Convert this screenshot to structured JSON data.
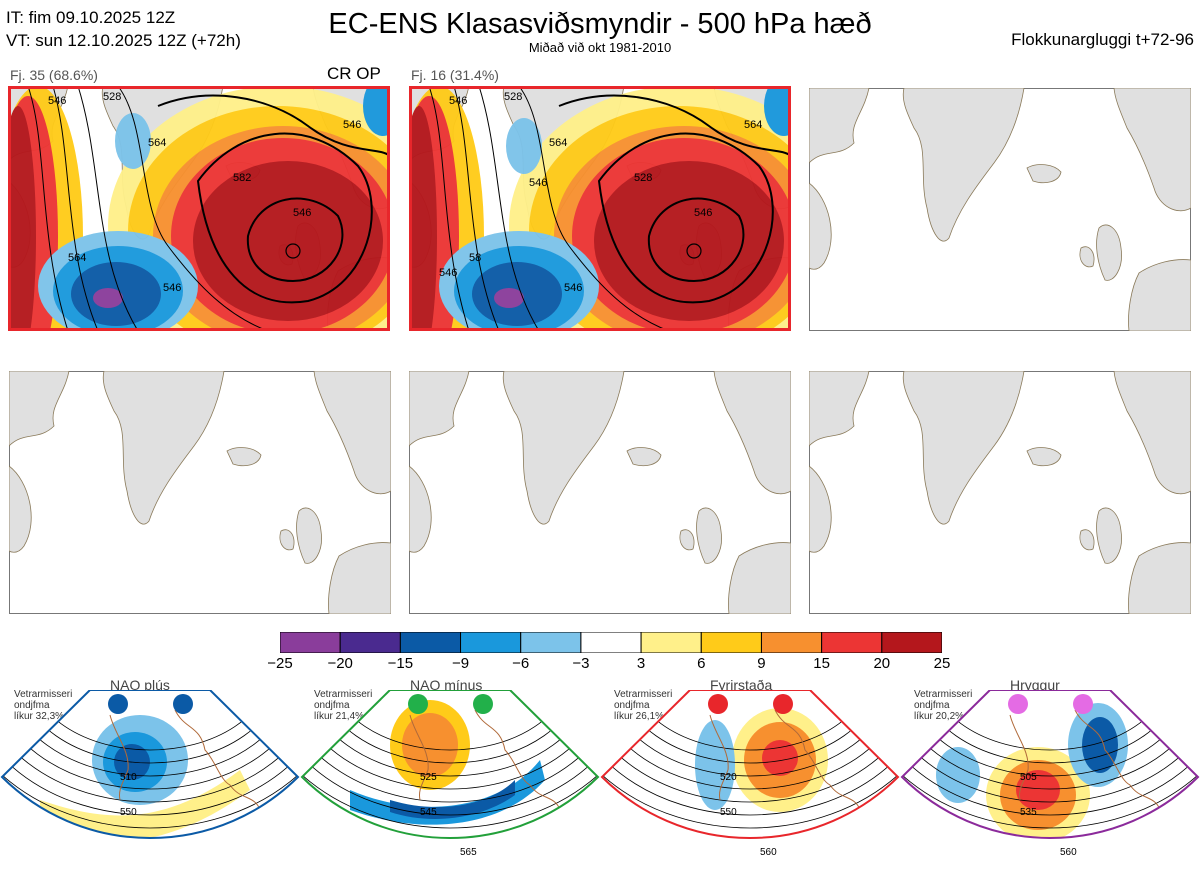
{
  "header": {
    "it_line": "IT: fim 09.10.2025 12Z",
    "vt_line": "VT: sun 12.10.2025 12Z  (+72h)",
    "title": "EC-ENS Klasasviðsmyndir - 500 hPa hæð",
    "subtitle": "Miðað við okt 1981-2010",
    "window": "Flokkunargluggi t+72-96"
  },
  "clusters": [
    {
      "label": "Fj. 35 (68.6%)",
      "tag": "CR OP",
      "contour_labels": [
        "546",
        "528",
        "564",
        "582",
        "546",
        "546",
        "564",
        "546"
      ]
    },
    {
      "label": "Fj. 16 (31.4%)",
      "tag": "",
      "contour_labels": [
        "546",
        "528",
        "564",
        "528",
        "546",
        "564",
        "58",
        "546",
        "546",
        "546"
      ]
    }
  ],
  "colorbar": {
    "ticks": [
      "−25",
      "−20",
      "−15",
      "−9",
      "−6",
      "−3",
      "3",
      "6",
      "9",
      "15",
      "20",
      "25"
    ],
    "colors": [
      "#8a3d9b",
      "#4a2a8f",
      "#0b5aa6",
      "#1a98dc",
      "#7cc3ea",
      "#ffffff",
      "#fff08a",
      "#ffcb19",
      "#f7902f",
      "#ec3534",
      "#b4171c"
    ]
  },
  "chart_data": {
    "type": "heatmap",
    "title": "EC-ENS Klasasviðsmyndir - 500 hPa hæð",
    "subtitle": "Miðað við okt 1981-2010",
    "legend": "colorbar bottom",
    "colorbar_bins": [
      -25,
      -20,
      -15,
      -9,
      -6,
      -3,
      3,
      6,
      9,
      15,
      20,
      25
    ],
    "clusters": [
      {
        "name": "Fj. 35",
        "members": 35,
        "percent": 68.6,
        "tag": "CR OP"
      },
      {
        "name": "Fj. 16",
        "members": 16,
        "percent": 31.4,
        "tag": ""
      }
    ],
    "empty_panels": 4
  },
  "regimes": [
    {
      "title": "NAO plús",
      "note_lines": [
        "Vetrarmisseri",
        "ondjfma",
        "líkur 32,3%"
      ],
      "color": "#0b5aa6",
      "dot_color": "#0b5aa6",
      "labels": [
        "510",
        "550"
      ]
    },
    {
      "title": "NAO mínus",
      "note_lines": [
        "Vetrarmisseri",
        "ondjfma",
        "líkur 21,4%"
      ],
      "color": "#22a03a",
      "dot_color": "#22b04a",
      "labels": [
        "525",
        "545",
        "565"
      ]
    },
    {
      "title": "Fyrirstaða",
      "note_lines": [
        "Vetrarmisseri",
        "ondjfma",
        "líkur 26,1%"
      ],
      "color": "#e8262b",
      "dot_color": "#e8262b",
      "labels": [
        "520",
        "550",
        "560"
      ]
    },
    {
      "title": "Hryggur",
      "note_lines": [
        "Vetrarmisseri",
        "ondjfma",
        "líkur 20,2%"
      ],
      "color": "#8b2a9b",
      "dot_color": "#e46be4",
      "labels": [
        "505",
        "535",
        "560"
      ]
    }
  ]
}
